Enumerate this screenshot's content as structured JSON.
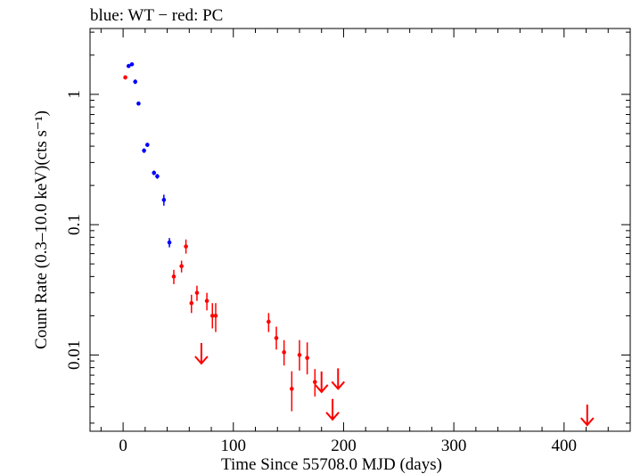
{
  "chart_data": {
    "type": "scatter",
    "title": "blue: WT − red: PC",
    "xlabel": "Time Since 55708.0 MJD (days)",
    "ylabel": "Count Rate (0.3–10.0 keV)(cts s⁻¹)",
    "xlim": [
      -30,
      460
    ],
    "ylim": [
      0.0026,
      3.2
    ],
    "yscale": "log",
    "grid": false,
    "x_ticks": [
      0,
      100,
      200,
      300,
      400
    ],
    "x_tick_labels": [
      "0",
      "100",
      "200",
      "300",
      "400"
    ],
    "y_ticks": [
      0.01,
      0.1,
      1
    ],
    "y_tick_labels": [
      "0.01",
      "0.1",
      "1"
    ],
    "series": [
      {
        "name": "WT",
        "color": "#0000ff",
        "points": [
          {
            "x": 5.0,
            "y": 1.65,
            "ylo": 1.6,
            "yhi": 1.7
          },
          {
            "x": 8.0,
            "y": 1.7,
            "ylo": 1.65,
            "yhi": 1.75
          },
          {
            "x": 11.0,
            "y": 1.25,
            "ylo": 1.2,
            "yhi": 1.3
          },
          {
            "x": 14.0,
            "y": 0.85,
            "ylo": 0.82,
            "yhi": 0.88
          },
          {
            "x": 19.0,
            "y": 0.37,
            "ylo": 0.355,
            "yhi": 0.385
          },
          {
            "x": 22.0,
            "y": 0.41,
            "ylo": 0.395,
            "yhi": 0.425
          },
          {
            "x": 28.0,
            "y": 0.25,
            "ylo": 0.24,
            "yhi": 0.26
          },
          {
            "x": 31.0,
            "y": 0.235,
            "ylo": 0.225,
            "yhi": 0.245
          },
          {
            "x": 37.0,
            "y": 0.155,
            "ylo": 0.14,
            "yhi": 0.17
          },
          {
            "x": 42.0,
            "y": 0.073,
            "ylo": 0.067,
            "yhi": 0.079
          }
        ]
      },
      {
        "name": "PC",
        "color": "#ff0000",
        "points": [
          {
            "x": 2.0,
            "y": 1.35,
            "ylo": 1.3,
            "yhi": 1.4
          },
          {
            "x": 46.0,
            "y": 0.04,
            "ylo": 0.035,
            "yhi": 0.045
          },
          {
            "x": 53.0,
            "y": 0.048,
            "ylo": 0.043,
            "yhi": 0.053
          },
          {
            "x": 57.0,
            "y": 0.068,
            "ylo": 0.06,
            "yhi": 0.077
          },
          {
            "x": 62.0,
            "y": 0.025,
            "ylo": 0.021,
            "yhi": 0.029
          },
          {
            "x": 67.0,
            "y": 0.03,
            "ylo": 0.026,
            "yhi": 0.034
          },
          {
            "x": 76.0,
            "y": 0.026,
            "ylo": 0.022,
            "yhi": 0.03
          },
          {
            "x": 81.0,
            "y": 0.02,
            "ylo": 0.016,
            "yhi": 0.025
          },
          {
            "x": 84.0,
            "y": 0.02,
            "ylo": 0.015,
            "yhi": 0.025
          },
          {
            "x": 132.0,
            "y": 0.018,
            "ylo": 0.015,
            "yhi": 0.021
          },
          {
            "x": 139.0,
            "y": 0.0135,
            "ylo": 0.011,
            "yhi": 0.0165
          },
          {
            "x": 146.0,
            "y": 0.0105,
            "ylo": 0.0083,
            "yhi": 0.013
          },
          {
            "x": 153.0,
            "y": 0.0055,
            "ylo": 0.0037,
            "yhi": 0.0075
          },
          {
            "x": 160.0,
            "y": 0.01,
            "ylo": 0.0076,
            "yhi": 0.013
          },
          {
            "x": 167.0,
            "y": 0.0095,
            "ylo": 0.0071,
            "yhi": 0.0125
          },
          {
            "x": 174.0,
            "y": 0.0062,
            "ylo": 0.0048,
            "yhi": 0.0078
          }
        ],
        "upper_limits": [
          {
            "x": 71.0,
            "y": 0.0086
          },
          {
            "x": 180.0,
            "y": 0.0052
          },
          {
            "x": 190.0,
            "y": 0.0032
          },
          {
            "x": 195.0,
            "y": 0.0055
          },
          {
            "x": 421.0,
            "y": 0.0029
          }
        ]
      }
    ]
  }
}
